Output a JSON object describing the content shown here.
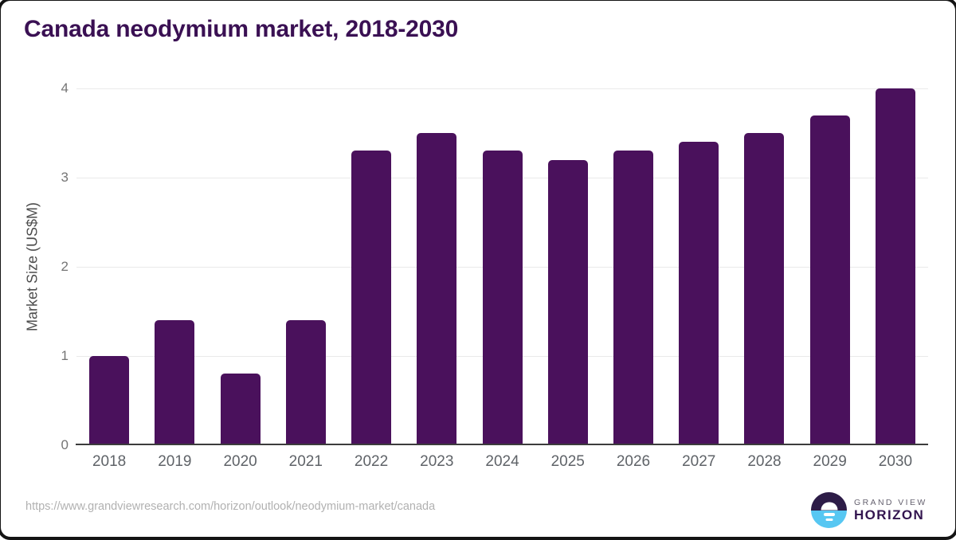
{
  "page": {
    "title": "Canada neodymium market, 2018-2030"
  },
  "chart_data": {
    "type": "bar",
    "title": "Canada neodymium market, 2018-2030",
    "categories": [
      "2018",
      "2019",
      "2020",
      "2021",
      "2022",
      "2023",
      "2024",
      "2025",
      "2026",
      "2027",
      "2028",
      "2029",
      "2030"
    ],
    "values": [
      1.0,
      1.4,
      0.8,
      1.4,
      3.3,
      3.5,
      3.3,
      3.2,
      3.3,
      3.4,
      3.5,
      3.7,
      4.0
    ],
    "xlabel": "",
    "ylabel": "Market Size (US$M)",
    "ylim": [
      0,
      4
    ],
    "yticks": [
      0,
      1,
      2,
      3,
      4
    ],
    "grid": true,
    "legend": "none",
    "bar_color": "#4A115C"
  },
  "footer": {
    "source_url": "https://www.grandviewresearch.com/horizon/outlook/neodymium-market/canada",
    "logo": {
      "name": "grand-view-horizon-logo",
      "line1": "GRAND VIEW",
      "line2": "HORIZON"
    }
  },
  "colors": {
    "bar": "#4A115C",
    "title": "#3A1053",
    "gridline": "#EAEAEA",
    "axis_line": "#3C3C3C",
    "y_tick_label": "#757575",
    "x_tick_label": "#5F6368",
    "url_text": "#B1B1B1",
    "logo_dark_half": "#2D1C47",
    "logo_blue_half": "#57C7F2"
  }
}
